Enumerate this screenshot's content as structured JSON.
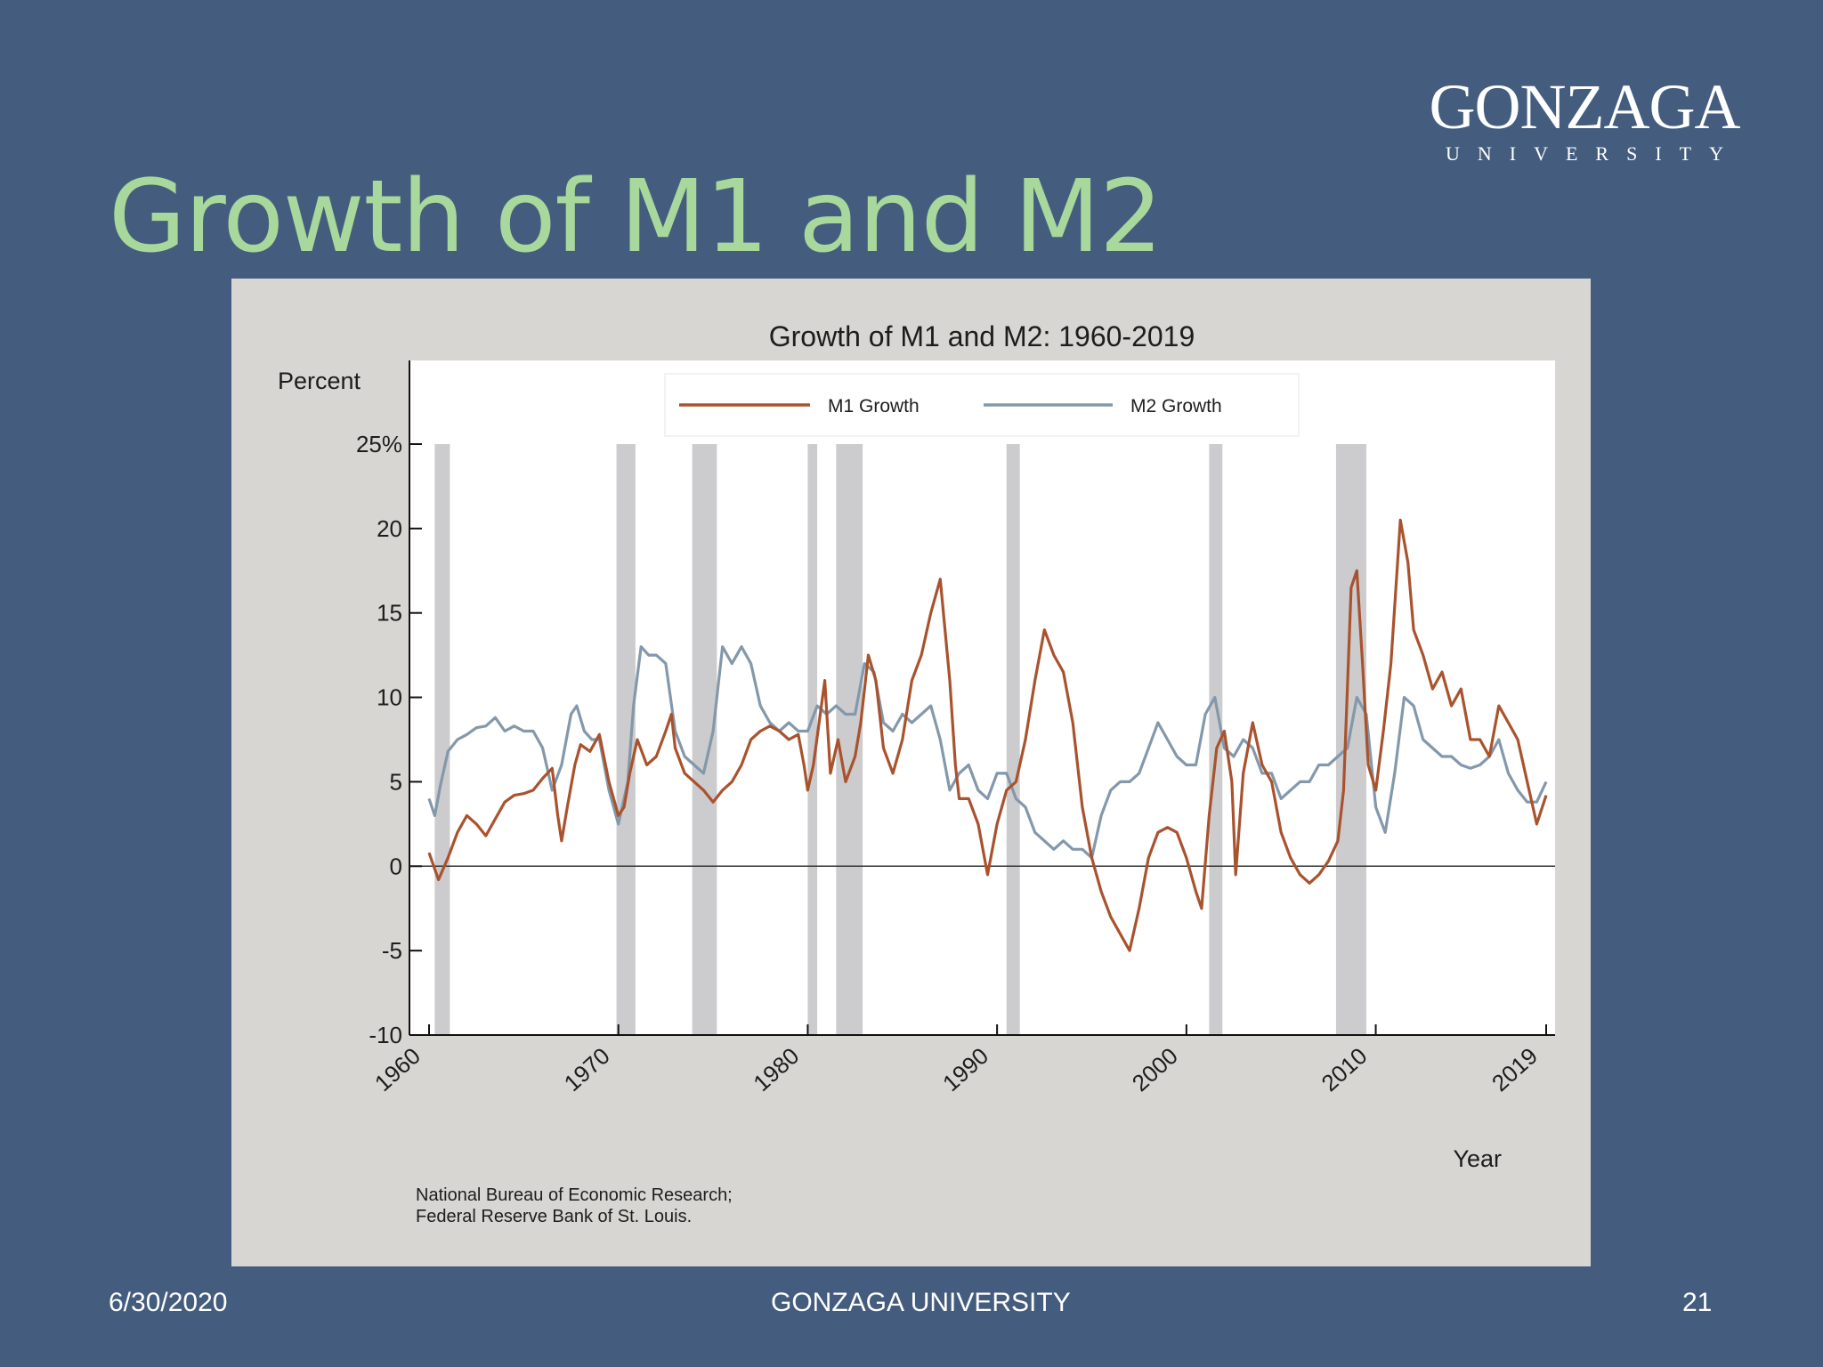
{
  "slide": {
    "title": "Growth of M1 and M2",
    "logo_main": "GONZAGA",
    "logo_sub": "UNIVERSITY",
    "footer_date": "6/30/2020",
    "footer_center": "GONZAGA UNIVERSITY",
    "page_number": "21"
  },
  "colors": {
    "background": "#445d7e",
    "title": "#a8d89b",
    "m1": "#a9532e",
    "m2": "#8398ab",
    "recession": "#cccbcd"
  },
  "chart_data": {
    "type": "line",
    "title": "Growth of M1 and M2: 1960-2019",
    "ylabel": "Percent",
    "xlabel": "Year",
    "source": [
      "National Bureau of Economic Research;",
      "Federal Reserve Bank of St. Louis."
    ],
    "xlim": [
      1960,
      2019
    ],
    "ylim": [
      -10,
      25
    ],
    "yticks": [
      25,
      20,
      15,
      10,
      5,
      0,
      -5,
      -10
    ],
    "ytick_labels": [
      "25%",
      "20",
      "15",
      "10",
      "5",
      "0",
      "-5",
      "-10"
    ],
    "xticks": [
      1960,
      1970,
      1980,
      1990,
      2000,
      2010,
      2019
    ],
    "xtick_labels": [
      "1960",
      "1970",
      "1980",
      "1990",
      "2000",
      "2010",
      "2019"
    ],
    "legend": "top-center",
    "zero_line": true,
    "recessions": [
      [
        1960.3,
        1961.1
      ],
      [
        1969.9,
        1970.9
      ],
      [
        1973.9,
        1975.2
      ],
      [
        1980.0,
        1980.5
      ],
      [
        1981.5,
        1982.9
      ],
      [
        1990.5,
        1991.2
      ],
      [
        2001.2,
        2001.9
      ],
      [
        2007.9,
        2009.5
      ]
    ],
    "series": [
      {
        "name": "M1 Growth",
        "points": [
          [
            1960.0,
            0.8
          ],
          [
            1960.5,
            -0.8
          ],
          [
            1961.0,
            0.5
          ],
          [
            1961.5,
            2.0
          ],
          [
            1962.0,
            3.0
          ],
          [
            1962.5,
            2.5
          ],
          [
            1963.0,
            1.8
          ],
          [
            1963.5,
            2.8
          ],
          [
            1964.0,
            3.8
          ],
          [
            1964.5,
            4.2
          ],
          [
            1965.0,
            4.3
          ],
          [
            1965.5,
            4.5
          ],
          [
            1966.0,
            5.2
          ],
          [
            1966.5,
            5.8
          ],
          [
            1966.8,
            3.0
          ],
          [
            1967.0,
            1.5
          ],
          [
            1967.3,
            3.5
          ],
          [
            1967.7,
            6.0
          ],
          [
            1968.0,
            7.2
          ],
          [
            1968.5,
            6.8
          ],
          [
            1969.0,
            7.8
          ],
          [
            1969.5,
            5.0
          ],
          [
            1970.0,
            3.0
          ],
          [
            1970.3,
            3.5
          ],
          [
            1970.6,
            5.5
          ],
          [
            1971.0,
            7.5
          ],
          [
            1971.5,
            6.0
          ],
          [
            1972.0,
            6.5
          ],
          [
            1972.5,
            8.0
          ],
          [
            1972.8,
            9.0
          ],
          [
            1973.0,
            7.0
          ],
          [
            1973.5,
            5.5
          ],
          [
            1974.0,
            5.0
          ],
          [
            1974.5,
            4.5
          ],
          [
            1975.0,
            3.8
          ],
          [
            1975.5,
            4.5
          ],
          [
            1976.0,
            5.0
          ],
          [
            1976.5,
            6.0
          ],
          [
            1977.0,
            7.5
          ],
          [
            1977.5,
            8.0
          ],
          [
            1978.0,
            8.3
          ],
          [
            1978.5,
            8.0
          ],
          [
            1979.0,
            7.5
          ],
          [
            1979.5,
            7.8
          ],
          [
            1979.8,
            6.0
          ],
          [
            1980.0,
            4.5
          ],
          [
            1980.3,
            6.0
          ],
          [
            1980.6,
            8.5
          ],
          [
            1980.9,
            11.0
          ],
          [
            1981.2,
            5.5
          ],
          [
            1981.6,
            7.5
          ],
          [
            1982.0,
            5.0
          ],
          [
            1982.5,
            6.5
          ],
          [
            1982.8,
            8.5
          ],
          [
            1983.2,
            12.5
          ],
          [
            1983.6,
            11.0
          ],
          [
            1984.0,
            7.0
          ],
          [
            1984.5,
            5.5
          ],
          [
            1985.0,
            7.5
          ],
          [
            1985.5,
            11.0
          ],
          [
            1986.0,
            12.5
          ],
          [
            1986.5,
            15.0
          ],
          [
            1987.0,
            17.0
          ],
          [
            1987.5,
            11.0
          ],
          [
            1987.8,
            6.0
          ],
          [
            1988.0,
            4.0
          ],
          [
            1988.5,
            4.0
          ],
          [
            1989.0,
            2.5
          ],
          [
            1989.5,
            -0.5
          ],
          [
            1990.0,
            2.5
          ],
          [
            1990.5,
            4.5
          ],
          [
            1991.0,
            5.0
          ],
          [
            1991.5,
            7.5
          ],
          [
            1992.0,
            11.0
          ],
          [
            1992.5,
            14.0
          ],
          [
            1993.0,
            12.5
          ],
          [
            1993.5,
            11.5
          ],
          [
            1994.0,
            8.5
          ],
          [
            1994.5,
            3.5
          ],
          [
            1995.0,
            0.5
          ],
          [
            1995.5,
            -1.5
          ],
          [
            1996.0,
            -3.0
          ],
          [
            1996.5,
            -4.0
          ],
          [
            1997.0,
            -5.0
          ],
          [
            1997.5,
            -2.5
          ],
          [
            1998.0,
            0.5
          ],
          [
            1998.5,
            2.0
          ],
          [
            1999.0,
            2.3
          ],
          [
            1999.5,
            2.0
          ],
          [
            2000.0,
            0.5
          ],
          [
            2000.5,
            -1.5
          ],
          [
            2000.8,
            -2.5
          ],
          [
            2001.2,
            3.0
          ],
          [
            2001.6,
            7.0
          ],
          [
            2002.0,
            8.0
          ],
          [
            2002.4,
            5.0
          ],
          [
            2002.6,
            -0.5
          ],
          [
            2003.0,
            5.5
          ],
          [
            2003.5,
            8.5
          ],
          [
            2004.0,
            6.0
          ],
          [
            2004.5,
            5.0
          ],
          [
            2005.0,
            2.0
          ],
          [
            2005.5,
            0.5
          ],
          [
            2006.0,
            -0.5
          ],
          [
            2006.5,
            -1.0
          ],
          [
            2007.0,
            -0.5
          ],
          [
            2007.5,
            0.3
          ],
          [
            2008.0,
            1.5
          ],
          [
            2008.3,
            4.5
          ],
          [
            2008.7,
            16.5
          ],
          [
            2009.0,
            17.5
          ],
          [
            2009.3,
            12.0
          ],
          [
            2009.6,
            6.0
          ],
          [
            2010.0,
            4.5
          ],
          [
            2010.4,
            8.0
          ],
          [
            2010.8,
            12.0
          ],
          [
            2011.3,
            20.5
          ],
          [
            2011.7,
            18.0
          ],
          [
            2012.0,
            14.0
          ],
          [
            2012.5,
            12.5
          ],
          [
            2013.0,
            10.5
          ],
          [
            2013.5,
            11.5
          ],
          [
            2014.0,
            9.5
          ],
          [
            2014.5,
            10.5
          ],
          [
            2015.0,
            7.5
          ],
          [
            2015.5,
            7.5
          ],
          [
            2016.0,
            6.5
          ],
          [
            2016.5,
            9.5
          ],
          [
            2017.0,
            8.5
          ],
          [
            2017.5,
            7.5
          ],
          [
            2018.0,
            5.0
          ],
          [
            2018.5,
            2.5
          ],
          [
            2019.0,
            4.2
          ]
        ]
      },
      {
        "name": "M2 Growth",
        "points": [
          [
            1960.0,
            4.0
          ],
          [
            1960.3,
            3.0
          ],
          [
            1960.6,
            4.8
          ],
          [
            1961.0,
            6.8
          ],
          [
            1961.5,
            7.5
          ],
          [
            1962.0,
            7.8
          ],
          [
            1962.5,
            8.2
          ],
          [
            1963.0,
            8.3
          ],
          [
            1963.5,
            8.8
          ],
          [
            1964.0,
            8.0
          ],
          [
            1964.5,
            8.3
          ],
          [
            1965.0,
            8.0
          ],
          [
            1965.5,
            8.0
          ],
          [
            1966.0,
            7.0
          ],
          [
            1966.5,
            4.5
          ],
          [
            1967.0,
            6.0
          ],
          [
            1967.5,
            9.0
          ],
          [
            1967.8,
            9.5
          ],
          [
            1968.2,
            8.0
          ],
          [
            1968.6,
            7.5
          ],
          [
            1969.0,
            7.5
          ],
          [
            1969.5,
            4.5
          ],
          [
            1970.0,
            2.5
          ],
          [
            1970.5,
            5.0
          ],
          [
            1970.8,
            9.5
          ],
          [
            1971.2,
            13.0
          ],
          [
            1971.6,
            12.5
          ],
          [
            1972.0,
            12.5
          ],
          [
            1972.5,
            12.0
          ],
          [
            1973.0,
            8.0
          ],
          [
            1973.5,
            6.5
          ],
          [
            1974.0,
            6.0
          ],
          [
            1974.5,
            5.5
          ],
          [
            1975.0,
            8.0
          ],
          [
            1975.5,
            13.0
          ],
          [
            1976.0,
            12.0
          ],
          [
            1976.5,
            13.0
          ],
          [
            1977.0,
            12.0
          ],
          [
            1977.5,
            9.5
          ],
          [
            1978.0,
            8.5
          ],
          [
            1978.5,
            8.0
          ],
          [
            1979.0,
            8.5
          ],
          [
            1979.5,
            8.0
          ],
          [
            1980.0,
            8.0
          ],
          [
            1980.5,
            9.5
          ],
          [
            1981.0,
            9.0
          ],
          [
            1981.5,
            9.5
          ],
          [
            1982.0,
            9.0
          ],
          [
            1982.5,
            9.0
          ],
          [
            1983.0,
            12.0
          ],
          [
            1983.5,
            11.5
          ],
          [
            1984.0,
            8.5
          ],
          [
            1984.5,
            8.0
          ],
          [
            1985.0,
            9.0
          ],
          [
            1985.5,
            8.5
          ],
          [
            1986.0,
            9.0
          ],
          [
            1986.5,
            9.5
          ],
          [
            1987.0,
            7.5
          ],
          [
            1987.5,
            4.5
          ],
          [
            1988.0,
            5.5
          ],
          [
            1988.5,
            6.0
          ],
          [
            1989.0,
            4.5
          ],
          [
            1989.5,
            4.0
          ],
          [
            1990.0,
            5.5
          ],
          [
            1990.5,
            5.5
          ],
          [
            1991.0,
            4.0
          ],
          [
            1991.5,
            3.5
          ],
          [
            1992.0,
            2.0
          ],
          [
            1992.5,
            1.5
          ],
          [
            1993.0,
            1.0
          ],
          [
            1993.5,
            1.5
          ],
          [
            1994.0,
            1.0
          ],
          [
            1994.5,
            1.0
          ],
          [
            1995.0,
            0.5
          ],
          [
            1995.5,
            3.0
          ],
          [
            1996.0,
            4.5
          ],
          [
            1996.5,
            5.0
          ],
          [
            1997.0,
            5.0
          ],
          [
            1997.5,
            5.5
          ],
          [
            1998.0,
            7.0
          ],
          [
            1998.5,
            8.5
          ],
          [
            1999.0,
            7.5
          ],
          [
            1999.5,
            6.5
          ],
          [
            2000.0,
            6.0
          ],
          [
            2000.5,
            6.0
          ],
          [
            2001.0,
            9.0
          ],
          [
            2001.5,
            10.0
          ],
          [
            2002.0,
            7.0
          ],
          [
            2002.5,
            6.5
          ],
          [
            2003.0,
            7.5
          ],
          [
            2003.5,
            7.0
          ],
          [
            2004.0,
            5.5
          ],
          [
            2004.5,
            5.5
          ],
          [
            2005.0,
            4.0
          ],
          [
            2005.5,
            4.5
          ],
          [
            2006.0,
            5.0
          ],
          [
            2006.5,
            5.0
          ],
          [
            2007.0,
            6.0
          ],
          [
            2007.5,
            6.0
          ],
          [
            2008.0,
            6.5
          ],
          [
            2008.5,
            7.0
          ],
          [
            2009.0,
            10.0
          ],
          [
            2009.5,
            9.0
          ],
          [
            2010.0,
            3.5
          ],
          [
            2010.5,
            2.0
          ],
          [
            2011.0,
            5.5
          ],
          [
            2011.5,
            10.0
          ],
          [
            2012.0,
            9.5
          ],
          [
            2012.5,
            7.5
          ],
          [
            2013.0,
            7.0
          ],
          [
            2013.5,
            6.5
          ],
          [
            2014.0,
            6.5
          ],
          [
            2014.5,
            6.0
          ],
          [
            2015.0,
            5.8
          ],
          [
            2015.5,
            6.0
          ],
          [
            2016.0,
            6.5
          ],
          [
            2016.5,
            7.5
          ],
          [
            2017.0,
            5.5
          ],
          [
            2017.5,
            4.5
          ],
          [
            2018.0,
            3.8
          ],
          [
            2018.5,
            3.8
          ],
          [
            2019.0,
            5.0
          ]
        ]
      }
    ]
  }
}
